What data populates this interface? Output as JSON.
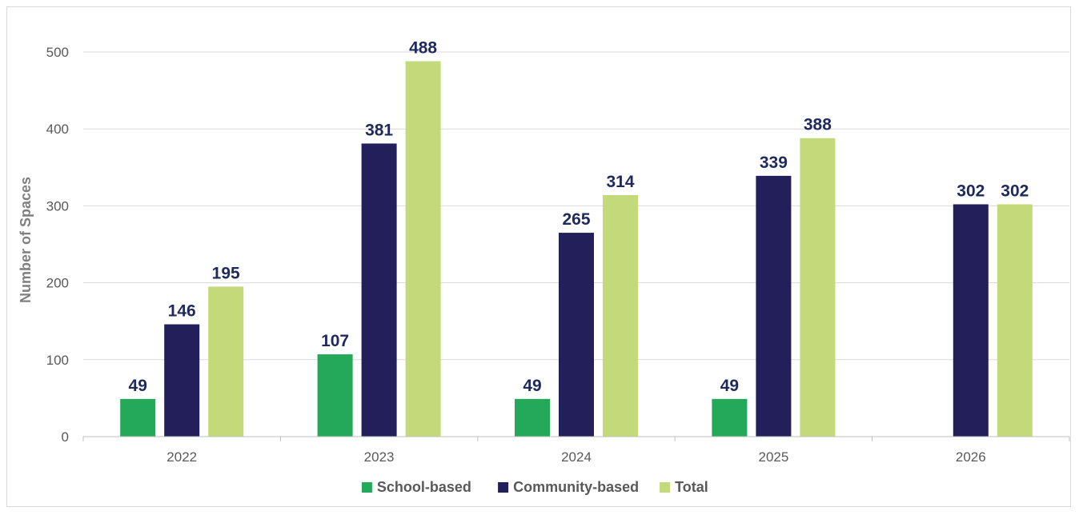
{
  "chart_data": {
    "type": "bar",
    "title": "",
    "xlabel": "",
    "ylabel": "Number of Spaces",
    "ylim": [
      0,
      500
    ],
    "yticks": [
      0,
      100,
      200,
      300,
      400,
      500
    ],
    "grid": true,
    "legend_position": "bottom",
    "categories": [
      "2022",
      "2023",
      "2024",
      "2025",
      "2026"
    ],
    "series": [
      {
        "name": "School-based",
        "color": "#24a85a",
        "values": [
          49,
          107,
          49,
          49,
          null
        ]
      },
      {
        "name": "Community-based",
        "color": "#221f5b",
        "values": [
          146,
          381,
          265,
          339,
          302
        ]
      },
      {
        "name": "Total",
        "color": "#c3d97a",
        "values": [
          195,
          488,
          314,
          388,
          302
        ]
      }
    ]
  }
}
